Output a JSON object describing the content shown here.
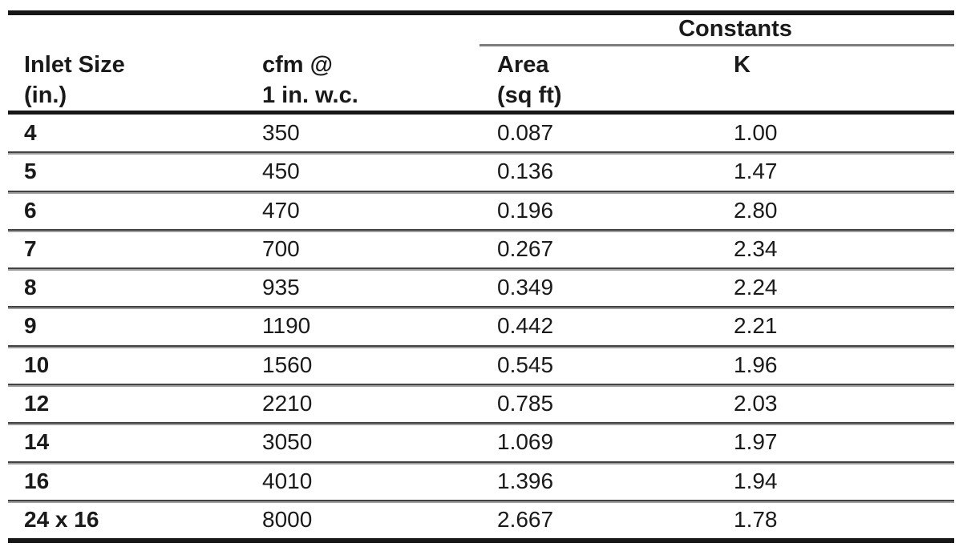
{
  "table": {
    "constants_group_label": "Constants",
    "columns": [
      {
        "label_line1": "Inlet Size",
        "label_line2": "(in.)"
      },
      {
        "label_line1": "cfm @",
        "label_line2": "1 in. w.c."
      },
      {
        "label_line1": "Area",
        "label_line2": "(sq ft)"
      },
      {
        "label_line1": "K",
        "label_line2": ""
      }
    ],
    "rows": [
      {
        "inlet_size": "4",
        "cfm": "350",
        "area": "0.087",
        "k": "1.00"
      },
      {
        "inlet_size": "5",
        "cfm": "450",
        "area": "0.136",
        "k": "1.47"
      },
      {
        "inlet_size": "6",
        "cfm": "470",
        "area": "0.196",
        "k": "2.80"
      },
      {
        "inlet_size": "7",
        "cfm": "700",
        "area": "0.267",
        "k": "2.34"
      },
      {
        "inlet_size": "8",
        "cfm": "935",
        "area": "0.349",
        "k": "2.24"
      },
      {
        "inlet_size": "9",
        "cfm": "1190",
        "area": "0.442",
        "k": "2.21"
      },
      {
        "inlet_size": "10",
        "cfm": "1560",
        "area": "0.545",
        "k": "1.96"
      },
      {
        "inlet_size": "12",
        "cfm": "2210",
        "area": "0.785",
        "k": "2.03"
      },
      {
        "inlet_size": "14",
        "cfm": "3050",
        "area": "1.069",
        "k": "1.97"
      },
      {
        "inlet_size": "16",
        "cfm": "4010",
        "area": "1.396",
        "k": "1.94"
      },
      {
        "inlet_size": "24 x 16",
        "cfm": "8000",
        "area": "2.667",
        "k": "1.78"
      }
    ]
  },
  "chart_data": {
    "type": "table",
    "title": "",
    "group_header": {
      "label": "Constants",
      "spans": [
        "Area (sq ft)",
        "K"
      ]
    },
    "columns": [
      "Inlet Size (in.)",
      "cfm @ 1 in. w.c.",
      "Area (sq ft)",
      "K"
    ],
    "rows": [
      [
        "4",
        "350",
        "0.087",
        "1.00"
      ],
      [
        "5",
        "450",
        "0.136",
        "1.47"
      ],
      [
        "6",
        "470",
        "0.196",
        "2.80"
      ],
      [
        "7",
        "700",
        "0.267",
        "2.34"
      ],
      [
        "8",
        "935",
        "0.349",
        "2.24"
      ],
      [
        "9",
        "1190",
        "0.442",
        "2.21"
      ],
      [
        "10",
        "1560",
        "0.545",
        "1.96"
      ],
      [
        "12",
        "2210",
        "0.785",
        "2.03"
      ],
      [
        "14",
        "3050",
        "1.069",
        "1.97"
      ],
      [
        "16",
        "4010",
        "1.396",
        "1.94"
      ],
      [
        "24 x 16",
        "8000",
        "2.667",
        "1.78"
      ]
    ]
  },
  "colors": {
    "text": "#1a1a1a",
    "rule_black": "#171717",
    "separator_dark": "#424242",
    "separator_light": "#9e9e9e",
    "constants_underline": "#7d7d7d",
    "background": "#ffffff"
  }
}
